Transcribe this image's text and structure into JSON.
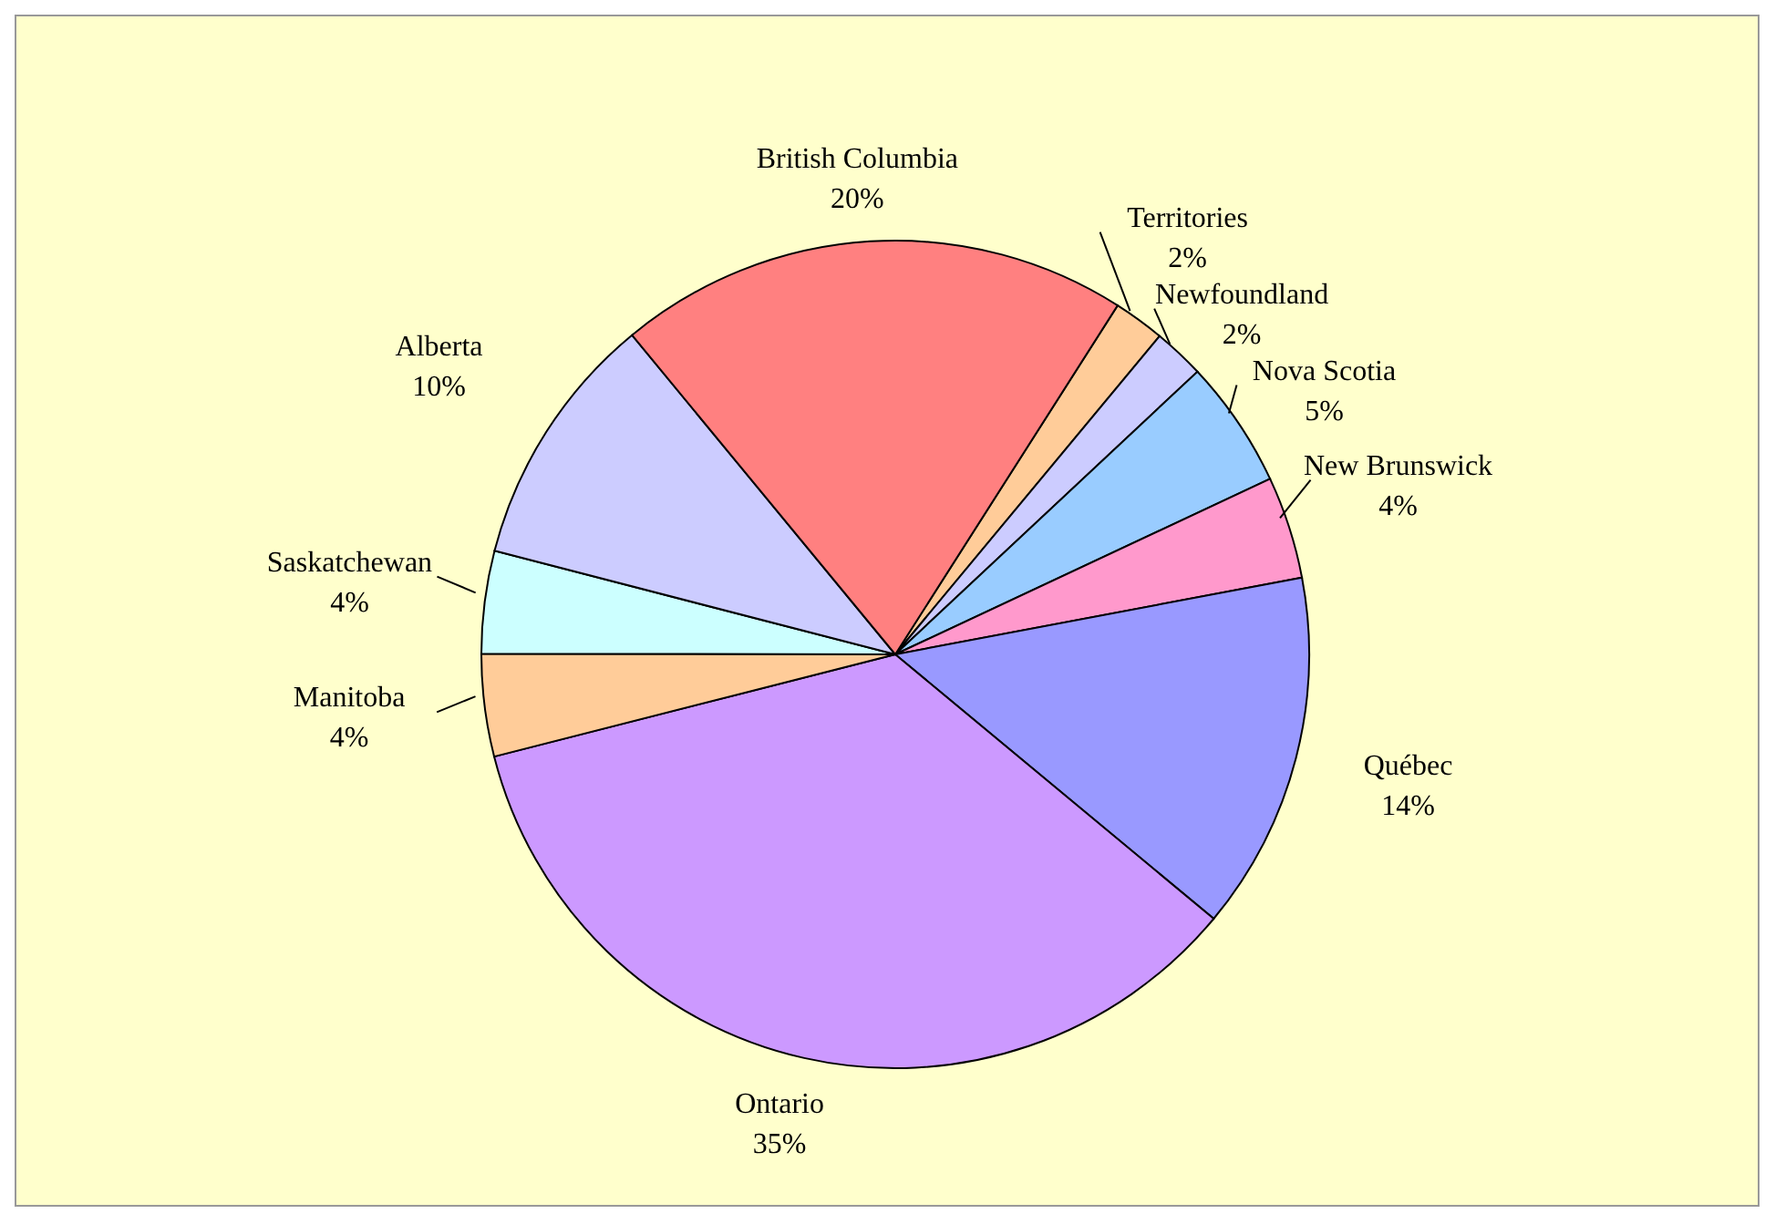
{
  "chart_data": {
    "type": "pie",
    "categories": [
      "Territories",
      "Newfoundland",
      "Nova Scotia",
      "New Brunswick",
      "Québec",
      "Ontario",
      "Manitoba",
      "Saskatchewan",
      "Alberta",
      "British Columbia"
    ],
    "values": [
      2,
      2,
      5,
      4,
      14,
      35,
      4,
      4,
      10,
      20
    ],
    "value_labels": [
      "2%",
      "2%",
      "5%",
      "4%",
      "14%",
      "35%",
      "4%",
      "4%",
      "10%",
      "20%"
    ],
    "colors": [
      "#ffcc99",
      "#ccccff",
      "#99ccff",
      "#ff99cc",
      "#9999ff",
      "#cc99ff",
      "#ffcc99",
      "#ccffff",
      "#ccccff",
      "#ff8080"
    ]
  }
}
